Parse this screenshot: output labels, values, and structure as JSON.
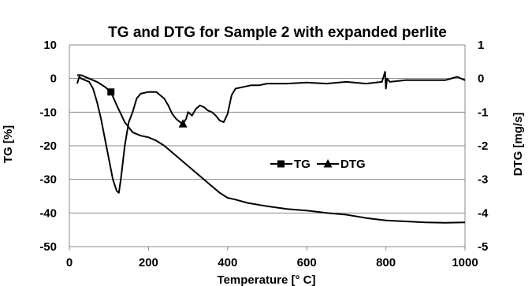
{
  "chart_data": {
    "type": "line",
    "title": "TG and DTG for Sample 2 with expanded perlite",
    "xlabel": "Temperature [° C]",
    "ylabel": "TG [%]",
    "y2label": "DTG [mg/s]",
    "xlim": [
      0,
      1000
    ],
    "ylim": [
      -50,
      10
    ],
    "y2lim": [
      -5,
      1
    ],
    "xticks": [
      "0",
      "200",
      "400",
      "600",
      "800",
      "1000"
    ],
    "yticks": [
      "10",
      "0",
      "-10",
      "-20",
      "-30",
      "-40",
      "-50"
    ],
    "y2ticks": [
      "1",
      "0",
      "-1",
      "-2",
      "-3",
      "-4",
      "-5"
    ],
    "grid": true,
    "legend_position": "center-right",
    "series": [
      {
        "name": "TG",
        "axis": "left",
        "marker": "square",
        "marker_x": 105,
        "color": "#000000",
        "x": [
          20,
          30,
          50,
          70,
          90,
          105,
          120,
          140,
          160,
          180,
          200,
          220,
          240,
          260,
          280,
          300,
          320,
          340,
          360,
          380,
          400,
          420,
          450,
          500,
          550,
          600,
          650,
          700,
          750,
          800,
          850,
          900,
          950,
          1000
        ],
        "y": [
          1,
          1,
          0,
          -1,
          -2.5,
          -4,
          -8,
          -13,
          -16,
          -17,
          -17.5,
          -18.5,
          -20,
          -22,
          -24,
          -26,
          -28,
          -30,
          -32,
          -34,
          -35.5,
          -36,
          -37,
          -38,
          -38.8,
          -39.3,
          -40,
          -40.5,
          -41.5,
          -42.2,
          -42.5,
          -42.8,
          -42.9,
          -42.8
        ]
      },
      {
        "name": "DTG",
        "axis": "right",
        "marker": "triangle",
        "marker_x": 287,
        "color": "#000000",
        "x": [
          20,
          25,
          30,
          40,
          50,
          60,
          70,
          80,
          90,
          100,
          110,
          120,
          125,
          130,
          140,
          150,
          160,
          170,
          180,
          200,
          220,
          240,
          250,
          260,
          270,
          280,
          287,
          295,
          300,
          310,
          320,
          330,
          340,
          350,
          360,
          370,
          380,
          390,
          400,
          410,
          420,
          440,
          460,
          480,
          500,
          550,
          600,
          650,
          700,
          750,
          790,
          798,
          800,
          803,
          810,
          850,
          900,
          950,
          980,
          1000
        ],
        "y": [
          -0.15,
          0.05,
          0.0,
          -0.05,
          -0.1,
          -0.3,
          -0.7,
          -1.2,
          -1.8,
          -2.4,
          -3.0,
          -3.35,
          -3.4,
          -3.0,
          -2.0,
          -1.3,
          -1.0,
          -0.6,
          -0.45,
          -0.4,
          -0.4,
          -0.6,
          -0.8,
          -1.05,
          -1.2,
          -1.3,
          -1.35,
          -1.2,
          -1.0,
          -1.1,
          -0.9,
          -0.8,
          -0.85,
          -0.95,
          -1.0,
          -1.1,
          -1.25,
          -1.3,
          -1.05,
          -0.5,
          -0.3,
          -0.25,
          -0.2,
          -0.2,
          -0.15,
          -0.15,
          -0.12,
          -0.15,
          -0.1,
          -0.15,
          -0.1,
          0.2,
          -0.3,
          0.0,
          -0.1,
          -0.05,
          -0.05,
          -0.05,
          0.05,
          -0.05
        ]
      }
    ]
  }
}
